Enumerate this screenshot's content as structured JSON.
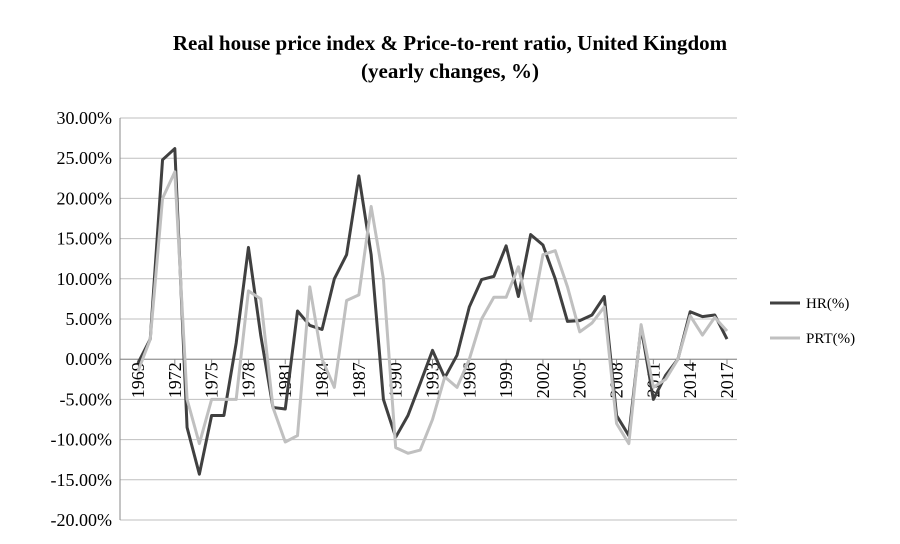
{
  "chart_data": {
    "type": "line",
    "title": "Real house price index & Price-to-rent ratio, United Kingdom",
    "subtitle": "(yearly changes, %)",
    "x": [
      1969,
      1970,
      1971,
      1972,
      1973,
      1974,
      1975,
      1976,
      1977,
      1978,
      1979,
      1980,
      1981,
      1982,
      1983,
      1984,
      1985,
      1986,
      1987,
      1988,
      1989,
      1990,
      1991,
      1992,
      1993,
      1994,
      1995,
      1996,
      1997,
      1998,
      1999,
      2000,
      2001,
      2002,
      2003,
      2004,
      2005,
      2006,
      2007,
      2008,
      2009,
      2010,
      2011,
      2012,
      2013,
      2014,
      2015,
      2016,
      2017
    ],
    "xlim": [
      1969,
      2017
    ],
    "xticks": [
      1969,
      1972,
      1975,
      1978,
      1981,
      1984,
      1987,
      1990,
      1993,
      1996,
      1999,
      2002,
      2005,
      2008,
      2011,
      2014,
      2017
    ],
    "ylim": [
      -20,
      30
    ],
    "yticks": [
      {
        "value": -20,
        "label": "-20.00%"
      },
      {
        "value": -15,
        "label": "-15.00%"
      },
      {
        "value": -10,
        "label": "-10.00%"
      },
      {
        "value": -5,
        "label": "-5.00%"
      },
      {
        "value": 0,
        "label": "0.00%"
      },
      {
        "value": 5,
        "label": "5.00%"
      },
      {
        "value": 10,
        "label": "10.00%"
      },
      {
        "value": 15,
        "label": "15.00%"
      },
      {
        "value": 20,
        "label": "20.00%"
      },
      {
        "value": 25,
        "label": "25.00%"
      },
      {
        "value": 30,
        "label": "30.00%"
      }
    ],
    "grid": true,
    "legend": "right",
    "series": [
      {
        "name": "HR(%)",
        "color": "#404040",
        "values": [
          -0.5,
          2.5,
          24.8,
          26.2,
          -8.5,
          -14.3,
          -7,
          -7,
          2,
          13.9,
          3,
          -6,
          -6.2,
          6,
          4.2,
          3.7,
          10,
          13,
          22.8,
          13,
          -5,
          -9.7,
          -7,
          -3,
          1.1,
          -2.3,
          0.5,
          6.5,
          9.9,
          10.3,
          14.1,
          7.8,
          15.5,
          14.2,
          10,
          4.7,
          4.8,
          5.5,
          7.8,
          -7,
          -9.5,
          4,
          -5,
          -2,
          0,
          5.9,
          5.3,
          5.5,
          2.5
        ]
      },
      {
        "name": "PRT(%)",
        "color": "#c0c0c0",
        "values": [
          -1.5,
          2.5,
          20,
          23.3,
          -5,
          -10.5,
          -5,
          -5,
          -5,
          8.5,
          7.5,
          -6,
          -10.3,
          -9.5,
          9,
          0,
          -3.5,
          7.3,
          8,
          19,
          10,
          -11,
          -11.7,
          -11.3,
          -7.5,
          -2.2,
          -3.5,
          0,
          5,
          7.7,
          7.7,
          11.5,
          4.8,
          13,
          13.5,
          9,
          3.4,
          4.5,
          6.5,
          -8,
          -10.5,
          4.3,
          -3.5,
          -2.5,
          0,
          5.4,
          3,
          5.2,
          3.5
        ]
      }
    ]
  }
}
